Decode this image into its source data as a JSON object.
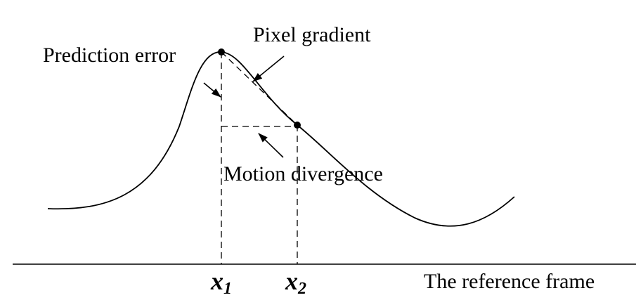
{
  "labels": {
    "prediction_error": "Prediction error",
    "pixel_gradient": "Pixel gradient",
    "motion_divergence": "Motion divergence",
    "reference_frame": "The reference frame"
  },
  "points": {
    "x1": {
      "base": "x",
      "sub": "1"
    },
    "x2": {
      "base": "x",
      "sub": "2"
    }
  },
  "colors": {
    "line": "#000000",
    "background": "#ffffff"
  }
}
